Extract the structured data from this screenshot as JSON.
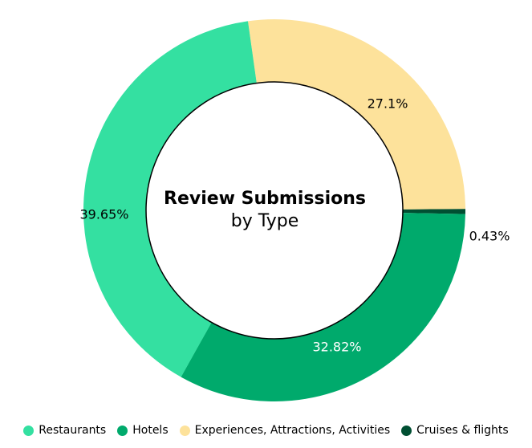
{
  "chart_data": {
    "type": "pie",
    "donut": true,
    "title": "Review Submissions",
    "subtitle": "by Type",
    "categories": [
      "Restaurants",
      "Hotels",
      "Experiences, Attractions, Activities",
      "Cruises & flights"
    ],
    "values": [
      39.65,
      32.82,
      27.1,
      0.43
    ],
    "value_labels": [
      "39.65%",
      "32.82%",
      "27.1%",
      "0.43%"
    ],
    "colors": [
      "#34e0a1",
      "#00aa6c",
      "#fde29b",
      "#004f32"
    ]
  }
}
